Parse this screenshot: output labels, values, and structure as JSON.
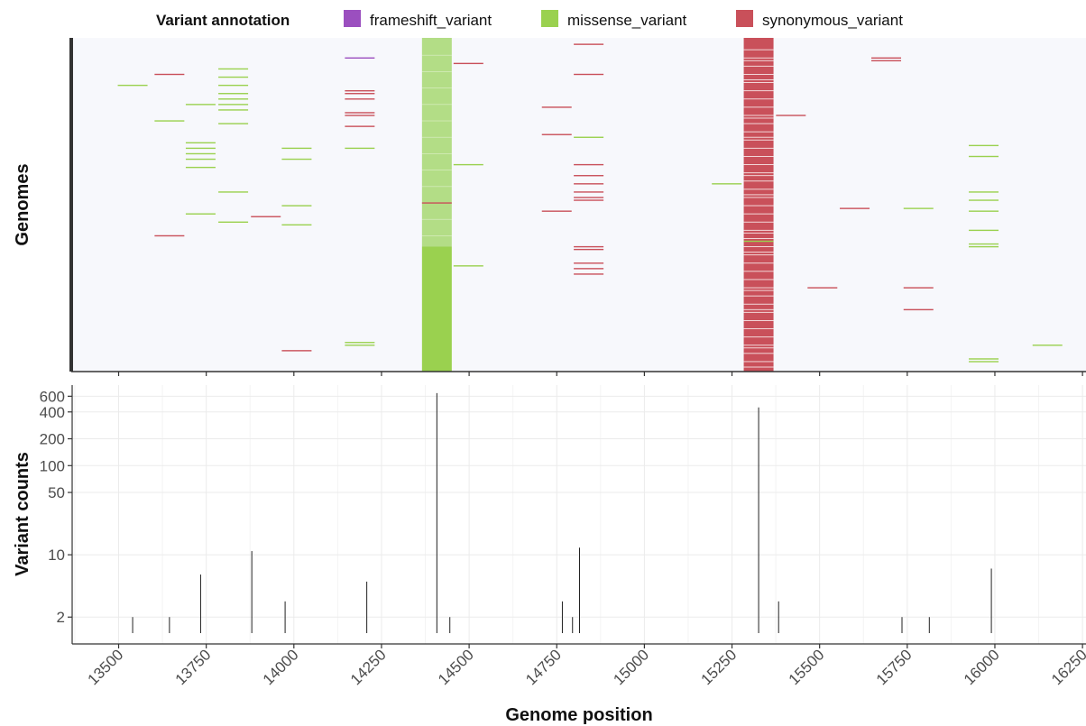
{
  "legend": {
    "title": "Variant annotation",
    "items": [
      {
        "label": "frameshift_variant",
        "color": "#9B4FBF"
      },
      {
        "label": "missense_variant",
        "color": "#9AD14F"
      },
      {
        "label": "synonymous_variant",
        "color": "#C9505A"
      }
    ]
  },
  "colors": {
    "heatmap_background": "#F7F8FC",
    "missense_light": "#B3DD86",
    "axis_line": "#333333",
    "grid_major": "#EBEBEB",
    "grid_minor": "#F4F4F4"
  },
  "chart_data": [
    {
      "type": "heatmap",
      "ylabel": "Genomes",
      "x_range": [
        13370,
        16260
      ],
      "genome_rows": 120,
      "tick_marks": [
        13500,
        13750,
        14000,
        14250,
        14500,
        14750,
        15000,
        15250,
        15500,
        15750,
        16000,
        16250
      ],
      "blocks": [
        {
          "position": 14408,
          "annotation": "missense_variant",
          "shade": "light",
          "rows": [
            1,
            75
          ]
        },
        {
          "position": 14408,
          "annotation": "missense_variant",
          "shade": "solid",
          "rows": [
            75,
            120
          ]
        },
        {
          "position": 15326,
          "annotation": "synonymous_variant",
          "shade": "solid",
          "rows": [
            1,
            120
          ]
        }
      ],
      "marks": [
        {
          "position": 13540,
          "row": 16,
          "annotation": "missense_variant"
        },
        {
          "position": 13645,
          "row": 12,
          "annotation": "synonymous_variant"
        },
        {
          "position": 13645,
          "row": 71,
          "annotation": "synonymous_variant"
        },
        {
          "position": 13645,
          "row": 29,
          "annotation": "missense_variant"
        },
        {
          "position": 13734,
          "row": 23,
          "annotation": "missense_variant"
        },
        {
          "position": 13734,
          "row": 37,
          "annotation": "missense_variant"
        },
        {
          "position": 13734,
          "row": 39,
          "annotation": "missense_variant"
        },
        {
          "position": 13734,
          "row": 41,
          "annotation": "missense_variant"
        },
        {
          "position": 13734,
          "row": 43,
          "annotation": "missense_variant"
        },
        {
          "position": 13734,
          "row": 46,
          "annotation": "missense_variant"
        },
        {
          "position": 13734,
          "row": 63,
          "annotation": "missense_variant"
        },
        {
          "position": 13827,
          "row": 10,
          "annotation": "missense_variant"
        },
        {
          "position": 13827,
          "row": 13,
          "annotation": "missense_variant"
        },
        {
          "position": 13827,
          "row": 16,
          "annotation": "missense_variant"
        },
        {
          "position": 13827,
          "row": 19,
          "annotation": "missense_variant"
        },
        {
          "position": 13827,
          "row": 21,
          "annotation": "missense_variant"
        },
        {
          "position": 13827,
          "row": 23,
          "annotation": "missense_variant"
        },
        {
          "position": 13827,
          "row": 25,
          "annotation": "missense_variant"
        },
        {
          "position": 13827,
          "row": 30,
          "annotation": "missense_variant"
        },
        {
          "position": 13827,
          "row": 55,
          "annotation": "missense_variant"
        },
        {
          "position": 13827,
          "row": 66,
          "annotation": "missense_variant"
        },
        {
          "position": 13920,
          "row": 64,
          "annotation": "synonymous_variant"
        },
        {
          "position": 14008,
          "row": 39,
          "annotation": "missense_variant"
        },
        {
          "position": 14008,
          "row": 43,
          "annotation": "missense_variant"
        },
        {
          "position": 14008,
          "row": 60,
          "annotation": "missense_variant"
        },
        {
          "position": 14008,
          "row": 67,
          "annotation": "missense_variant"
        },
        {
          "position": 14008,
          "row": 113,
          "annotation": "synonymous_variant"
        },
        {
          "position": 14188,
          "row": 6,
          "annotation": "frameshift_variant"
        },
        {
          "position": 14188,
          "row": 18,
          "annotation": "synonymous_variant"
        },
        {
          "position": 14188,
          "row": 19,
          "annotation": "synonymous_variant"
        },
        {
          "position": 14188,
          "row": 21,
          "annotation": "synonymous_variant"
        },
        {
          "position": 14188,
          "row": 26,
          "annotation": "synonymous_variant"
        },
        {
          "position": 14188,
          "row": 27,
          "annotation": "synonymous_variant"
        },
        {
          "position": 14188,
          "row": 31,
          "annotation": "synonymous_variant"
        },
        {
          "position": 14188,
          "row": 39,
          "annotation": "missense_variant"
        },
        {
          "position": 14188,
          "row": 110,
          "annotation": "missense_variant"
        },
        {
          "position": 14188,
          "row": 111,
          "annotation": "missense_variant"
        },
        {
          "position": 14408,
          "row": 59,
          "annotation": "synonymous_variant"
        },
        {
          "position": 14498,
          "row": 8,
          "annotation": "synonymous_variant"
        },
        {
          "position": 14498,
          "row": 45,
          "annotation": "missense_variant"
        },
        {
          "position": 14498,
          "row": 82,
          "annotation": "missense_variant"
        },
        {
          "position": 14750,
          "row": 24,
          "annotation": "synonymous_variant"
        },
        {
          "position": 14750,
          "row": 34,
          "annotation": "synonymous_variant"
        },
        {
          "position": 14750,
          "row": 62,
          "annotation": "synonymous_variant"
        },
        {
          "position": 14841,
          "row": 1,
          "annotation": "synonymous_variant"
        },
        {
          "position": 14841,
          "row": 12,
          "annotation": "synonymous_variant"
        },
        {
          "position": 14841,
          "row": 35,
          "annotation": "missense_variant"
        },
        {
          "position": 14841,
          "row": 45,
          "annotation": "synonymous_variant"
        },
        {
          "position": 14841,
          "row": 49,
          "annotation": "synonymous_variant"
        },
        {
          "position": 14841,
          "row": 52,
          "annotation": "synonymous_variant"
        },
        {
          "position": 14841,
          "row": 55,
          "annotation": "synonymous_variant"
        },
        {
          "position": 14841,
          "row": 57,
          "annotation": "synonymous_variant"
        },
        {
          "position": 14841,
          "row": 58,
          "annotation": "synonymous_variant"
        },
        {
          "position": 14841,
          "row": 75,
          "annotation": "synonymous_variant"
        },
        {
          "position": 14841,
          "row": 76,
          "annotation": "synonymous_variant"
        },
        {
          "position": 14841,
          "row": 81,
          "annotation": "synonymous_variant"
        },
        {
          "position": 14841,
          "row": 83,
          "annotation": "synonymous_variant"
        },
        {
          "position": 14841,
          "row": 85,
          "annotation": "synonymous_variant"
        },
        {
          "position": 15235,
          "row": 52,
          "annotation": "missense_variant"
        },
        {
          "position": 15326,
          "row": 73,
          "annotation": "missense_variant"
        },
        {
          "position": 15418,
          "row": 27,
          "annotation": "synonymous_variant"
        },
        {
          "position": 15508,
          "row": 90,
          "annotation": "synonymous_variant"
        },
        {
          "position": 15600,
          "row": 61,
          "annotation": "synonymous_variant"
        },
        {
          "position": 15690,
          "row": 6,
          "annotation": "synonymous_variant"
        },
        {
          "position": 15690,
          "row": 7,
          "annotation": "synonymous_variant"
        },
        {
          "position": 15782,
          "row": 61,
          "annotation": "missense_variant"
        },
        {
          "position": 15782,
          "row": 90,
          "annotation": "synonymous_variant"
        },
        {
          "position": 15782,
          "row": 98,
          "annotation": "synonymous_variant"
        },
        {
          "position": 15968,
          "row": 38,
          "annotation": "missense_variant"
        },
        {
          "position": 15968,
          "row": 42,
          "annotation": "missense_variant"
        },
        {
          "position": 15968,
          "row": 55,
          "annotation": "missense_variant"
        },
        {
          "position": 15968,
          "row": 58,
          "annotation": "missense_variant"
        },
        {
          "position": 15968,
          "row": 62,
          "annotation": "missense_variant"
        },
        {
          "position": 15968,
          "row": 69,
          "annotation": "missense_variant"
        },
        {
          "position": 15968,
          "row": 74,
          "annotation": "missense_variant"
        },
        {
          "position": 15968,
          "row": 75,
          "annotation": "missense_variant"
        },
        {
          "position": 15968,
          "row": 116,
          "annotation": "missense_variant"
        },
        {
          "position": 15968,
          "row": 117,
          "annotation": "missense_variant"
        },
        {
          "position": 16150,
          "row": 111,
          "annotation": "missense_variant"
        }
      ]
    },
    {
      "type": "bar",
      "xlabel": "Genome position",
      "ylabel": "Variant counts",
      "yscale": "log",
      "ylim": [
        1,
        800
      ],
      "xlim": [
        13370,
        16260
      ],
      "ytick_labels": [
        "2",
        "10",
        "50",
        "100",
        "200",
        "400",
        "600"
      ],
      "ytick_values": [
        2,
        10,
        50,
        100,
        200,
        400,
        600
      ],
      "xtick_labels": [
        "13500",
        "13750",
        "14000",
        "14250",
        "14500",
        "14750",
        "15000",
        "15250",
        "15500",
        "15750",
        "16000",
        "16250"
      ],
      "xtick_values": [
        13500,
        13750,
        14000,
        14250,
        14500,
        14750,
        15000,
        15250,
        15500,
        15750,
        16000,
        16250
      ],
      "points": [
        {
          "x": 13540,
          "y": 2
        },
        {
          "x": 13645,
          "y": 2
        },
        {
          "x": 13734,
          "y": 6
        },
        {
          "x": 13880,
          "y": 11
        },
        {
          "x": 13975,
          "y": 3
        },
        {
          "x": 14208,
          "y": 5
        },
        {
          "x": 14408,
          "y": 650
        },
        {
          "x": 14445,
          "y": 2
        },
        {
          "x": 14766,
          "y": 3
        },
        {
          "x": 14795,
          "y": 2
        },
        {
          "x": 14815,
          "y": 12
        },
        {
          "x": 15326,
          "y": 450
        },
        {
          "x": 15383,
          "y": 3
        },
        {
          "x": 15735,
          "y": 2
        },
        {
          "x": 15813,
          "y": 2
        },
        {
          "x": 15990,
          "y": 7
        }
      ]
    }
  ]
}
